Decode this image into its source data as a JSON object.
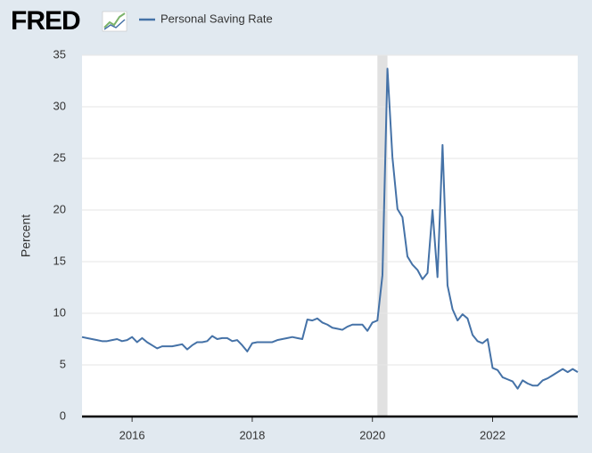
{
  "chart_data": {
    "type": "line",
    "logo": "FRED",
    "ylabel": "Percent",
    "x": [
      2015.167,
      2015.25,
      2015.333,
      2015.417,
      2015.5,
      2015.583,
      2015.667,
      2015.75,
      2015.833,
      2015.917,
      2016,
      2016.083,
      2016.167,
      2016.25,
      2016.333,
      2016.417,
      2016.5,
      2016.583,
      2016.667,
      2016.75,
      2016.833,
      2016.917,
      2017,
      2017.083,
      2017.167,
      2017.25,
      2017.333,
      2017.417,
      2017.5,
      2017.583,
      2017.667,
      2017.75,
      2017.833,
      2017.917,
      2018,
      2018.083,
      2018.167,
      2018.25,
      2018.333,
      2018.417,
      2018.5,
      2018.583,
      2018.667,
      2018.75,
      2018.833,
      2018.917,
      2019,
      2019.083,
      2019.167,
      2019.25,
      2019.333,
      2019.417,
      2019.5,
      2019.583,
      2019.667,
      2019.75,
      2019.833,
      2019.917,
      2020,
      2020.083,
      2020.167,
      2020.25,
      2020.333,
      2020.417,
      2020.5,
      2020.583,
      2020.667,
      2020.75,
      2020.833,
      2020.917,
      2021,
      2021.083,
      2021.167,
      2021.25,
      2021.333,
      2021.417,
      2021.5,
      2021.583,
      2021.667,
      2021.75,
      2021.833,
      2021.917,
      2022,
      2022.083,
      2022.167,
      2022.25,
      2022.333,
      2022.417,
      2022.5,
      2022.583,
      2022.667,
      2022.75,
      2022.833,
      2022.917,
      2023,
      2023.083,
      2023.167,
      2023.25,
      2023.333,
      2023.417
    ],
    "series": [
      {
        "name": "Personal Saving Rate",
        "color": "#4572a7",
        "values": [
          7.7,
          7.6,
          7.5,
          7.4,
          7.3,
          7.3,
          7.4,
          7.5,
          7.3,
          7.4,
          7.7,
          7.2,
          7.6,
          7.2,
          6.9,
          6.6,
          6.8,
          6.8,
          6.8,
          6.9,
          7.0,
          6.5,
          6.9,
          7.2,
          7.2,
          7.3,
          7.8,
          7.5,
          7.6,
          7.6,
          7.3,
          7.4,
          6.9,
          6.3,
          7.1,
          7.2,
          7.2,
          7.2,
          7.2,
          7.4,
          7.5,
          7.6,
          7.7,
          7.6,
          7.5,
          9.4,
          9.3,
          9.5,
          9.1,
          8.9,
          8.6,
          8.5,
          8.4,
          8.7,
          8.9,
          8.9,
          8.9,
          8.3,
          9.1,
          9.3,
          13.7,
          33.7,
          25.1,
          20.1,
          19.3,
          15.5,
          14.7,
          14.2,
          13.3,
          13.9,
          20.0,
          13.5,
          26.3,
          12.7,
          10.4,
          9.3,
          9.9,
          9.5,
          7.9,
          7.3,
          7.1,
          7.5,
          4.7,
          4.5,
          3.8,
          3.6,
          3.4,
          2.7,
          3.5,
          3.2,
          3.0,
          3.0,
          3.5,
          3.7,
          4.0,
          4.3,
          4.6,
          4.3,
          4.6,
          4.3
        ]
      }
    ],
    "recessions": [
      [
        2020.083,
        2020.25
      ]
    ],
    "xlim": [
      2015.167,
      2023.417
    ],
    "xticks": [
      2016,
      2018,
      2020,
      2022
    ],
    "ylim": [
      0,
      35
    ],
    "yticks": [
      0,
      5,
      10,
      15,
      20,
      25,
      30,
      35
    ],
    "grid": true
  }
}
